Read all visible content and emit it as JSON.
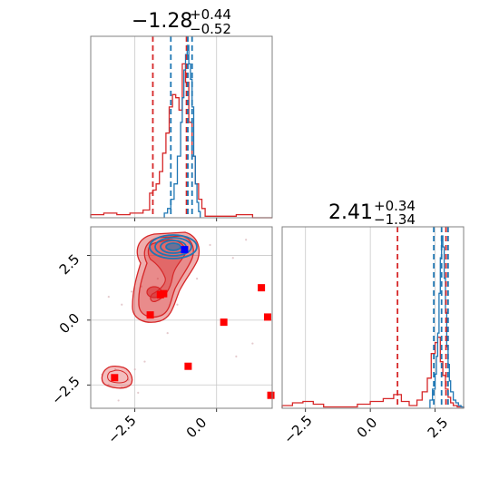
{
  "chart_data": {
    "type": "corner",
    "parameters": [
      {
        "title_value": "−1.28",
        "title_plus": "+0.44",
        "title_minus": "−0.52",
        "range": [
          -3.85,
          1.7
        ]
      },
      {
        "title_value": "2.41",
        "title_plus": "+0.34",
        "title_minus": "−1.34",
        "range": [
          -3.4,
          3.6
        ]
      }
    ],
    "series_colors": {
      "primary": "#d62728",
      "secondary": "#1f77b4",
      "marker": "#ff0000",
      "truth": "#0000ff"
    },
    "grid": true,
    "x_ticks": {
      "param1": [
        "−2.5",
        "0.0"
      ],
      "param2": [
        "−2.5",
        "0.0",
        "2.5"
      ]
    },
    "y_ticks": {
      "param2": [
        "2.5",
        "0.0",
        "−2.5"
      ]
    },
    "tick_values": {
      "param1": [
        -2.5,
        0.0
      ],
      "param2": [
        -2.5,
        0.0,
        2.5
      ]
    },
    "quantiles": {
      "param1": {
        "red": [
          -1.95,
          -0.92
        ],
        "blue": [
          -1.4,
          -0.88,
          -0.75
        ]
      },
      "param2": {
        "red": [
          1.05,
          2.92
        ],
        "blue": [
          2.45,
          2.75,
          3.0
        ]
      }
    },
    "hist_param1": {
      "red": {
        "bins": [
          -3.85,
          -3.45,
          -3.05,
          -2.65,
          -2.25,
          -2.05,
          -1.95,
          -1.85,
          -1.75,
          -1.65,
          -1.55,
          -1.45,
          -1.35,
          -1.25,
          -1.15,
          -1.05,
          -0.95,
          -0.85,
          -0.75,
          -0.65,
          -0.55,
          -0.45,
          -0.35,
          0.6,
          1.1,
          1.7
        ],
        "counts": [
          2,
          3,
          2,
          3,
          5,
          16,
          18,
          22,
          30,
          42,
          55,
          72,
          80,
          78,
          70,
          100,
          88,
          62,
          40,
          22,
          12,
          6,
          1,
          2,
          0
        ]
      },
      "blue": {
        "bins": [
          -1.6,
          -1.5,
          -1.4,
          -1.3,
          -1.2,
          -1.1,
          -1.05,
          -1.0,
          -0.95,
          -0.9,
          -0.85,
          -0.8,
          -0.75,
          -0.7,
          -0.65,
          -0.6,
          -0.55,
          -0.5
        ],
        "counts": [
          3,
          6,
          12,
          22,
          40,
          62,
          78,
          96,
          106,
          112,
          100,
          90,
          72,
          40,
          22,
          10,
          4
        ]
      }
    },
    "hist_param2": {
      "red": {
        "bins": [
          -3.4,
          -3.0,
          -2.6,
          -2.2,
          -1.8,
          -0.5,
          0.0,
          0.5,
          0.9,
          1.2,
          1.5,
          1.8,
          2.0,
          2.2,
          2.35,
          2.5,
          2.6,
          2.7,
          2.8,
          2.9,
          3.0,
          3.1,
          3.2,
          3.35,
          3.6
        ],
        "counts": [
          2,
          4,
          5,
          3,
          1,
          3,
          5,
          7,
          10,
          5,
          2,
          6,
          12,
          22,
          40,
          48,
          52,
          34,
          24,
          14,
          8,
          4,
          2,
          1
        ]
      },
      "blue": {
        "bins": [
          2.3,
          2.4,
          2.5,
          2.55,
          2.6,
          2.65,
          2.7,
          2.75,
          2.8,
          2.85,
          2.9,
          2.95,
          3.0,
          3.05,
          3.1,
          3.2,
          3.3,
          3.4,
          3.5,
          3.6
        ],
        "counts": [
          6,
          14,
          25,
          38,
          55,
          84,
          110,
          126,
          118,
          95,
          70,
          45,
          32,
          20,
          12,
          6,
          4,
          2,
          1
        ]
      }
    },
    "scatter_markers": [
      {
        "x": -1.72,
        "y": 0.98
      },
      {
        "x": -1.62,
        "y": 1.02
      },
      {
        "x": -2.03,
        "y": 0.2
      },
      {
        "x": 0.22,
        "y": -0.08
      },
      {
        "x": 1.37,
        "y": 1.25
      },
      {
        "x": 1.56,
        "y": 0.12
      },
      {
        "x": -0.87,
        "y": -1.78
      },
      {
        "x": 1.66,
        "y": -2.9
      },
      {
        "x": -3.12,
        "y": -2.22
      }
    ],
    "truth_point": {
      "x": -0.98,
      "y": 2.72
    }
  }
}
